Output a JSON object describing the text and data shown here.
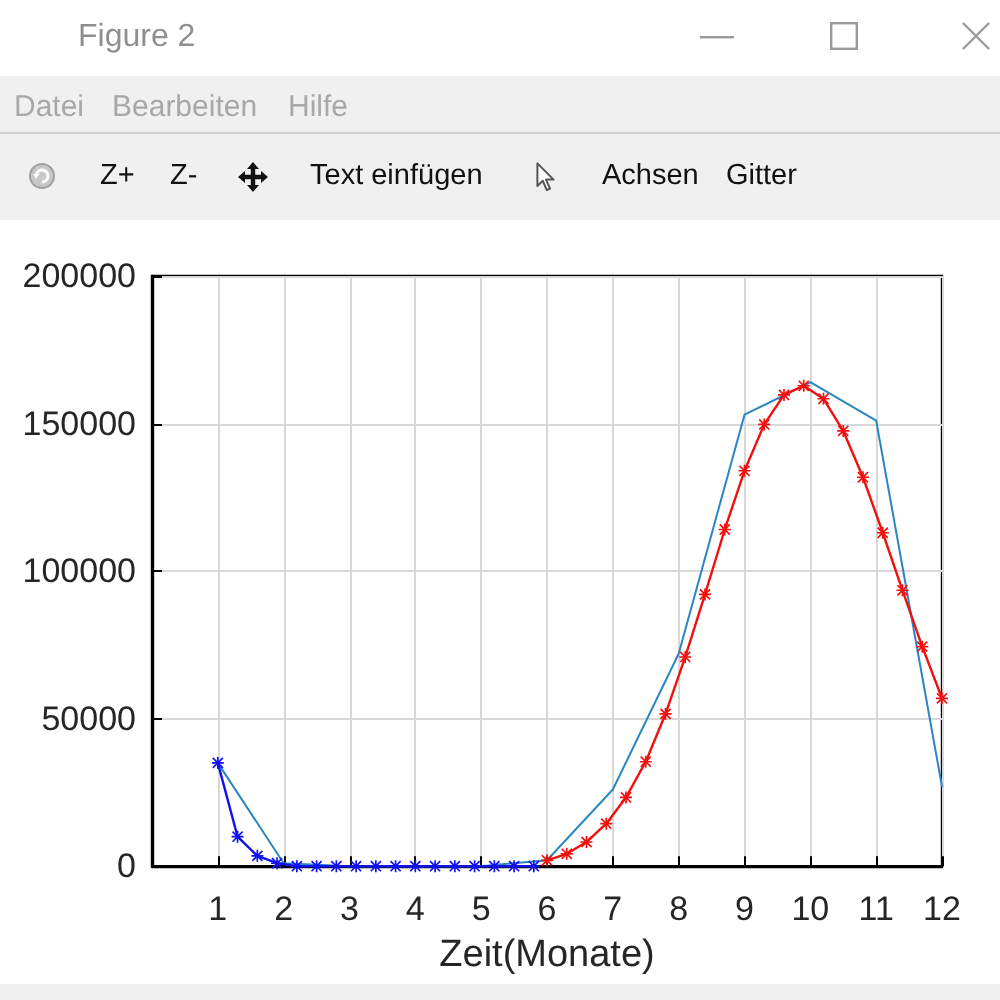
{
  "chart_data": {
    "type": "line",
    "xlabel": "Zeit(Monate)",
    "annotations": [
      "Figure 2",
      "Datei",
      "Bearbeiten",
      "Hilfe",
      "Z+",
      "Z-",
      "Text einfügen",
      "Achsen",
      "Gitter"
    ],
    "xlim": [
      0,
      12
    ],
    "xticks": [
      1,
      2,
      3,
      4,
      5,
      6,
      7,
      8,
      9,
      10,
      11,
      12
    ],
    "ylim": [
      0,
      200000
    ],
    "yticks": [
      0,
      50000,
      100000,
      150000,
      200000
    ],
    "grid": true,
    "marker": "star",
    "series": [
      {
        "color": "#2a86c2",
        "marker": "none",
        "x": [
          1,
          2,
          3,
          4,
          5,
          6,
          7,
          8,
          9,
          10,
          11,
          12
        ],
        "values": [
          35000,
          1000,
          0,
          0,
          0,
          2000,
          26000,
          72000,
          153000,
          164000,
          151000,
          27000
        ]
      },
      {
        "color": "#1010f0",
        "x": [
          1,
          1.3,
          1.6,
          1.9,
          2.2,
          2.5,
          2.8,
          3.1,
          3.4,
          3.7,
          4.0,
          4.3,
          4.6,
          4.9,
          5.2,
          5.5,
          5.8
        ],
        "values": [
          35000,
          10000,
          3500,
          1000,
          0,
          0,
          0,
          0,
          0,
          0,
          0,
          0,
          0,
          0,
          0,
          0,
          0
        ]
      },
      {
        "color": "#f01010",
        "x": [
          6,
          6.3,
          6.6,
          6.9,
          7.2,
          7.5,
          7.8,
          8.1,
          8.4,
          8.7,
          9.0,
          9.3,
          9.6,
          9.9,
          10.2,
          10.5,
          10.8,
          11.1,
          11.4,
          11.7,
          12.0
        ],
        "values": [
          2000,
          4200,
          8200,
          14400,
          23300,
          35400,
          51600,
          70900,
          92100,
          114100,
          134000,
          149700,
          159700,
          162800,
          158400,
          147500,
          131800,
          113000,
          93500,
          74400,
          56900
        ]
      }
    ]
  }
}
